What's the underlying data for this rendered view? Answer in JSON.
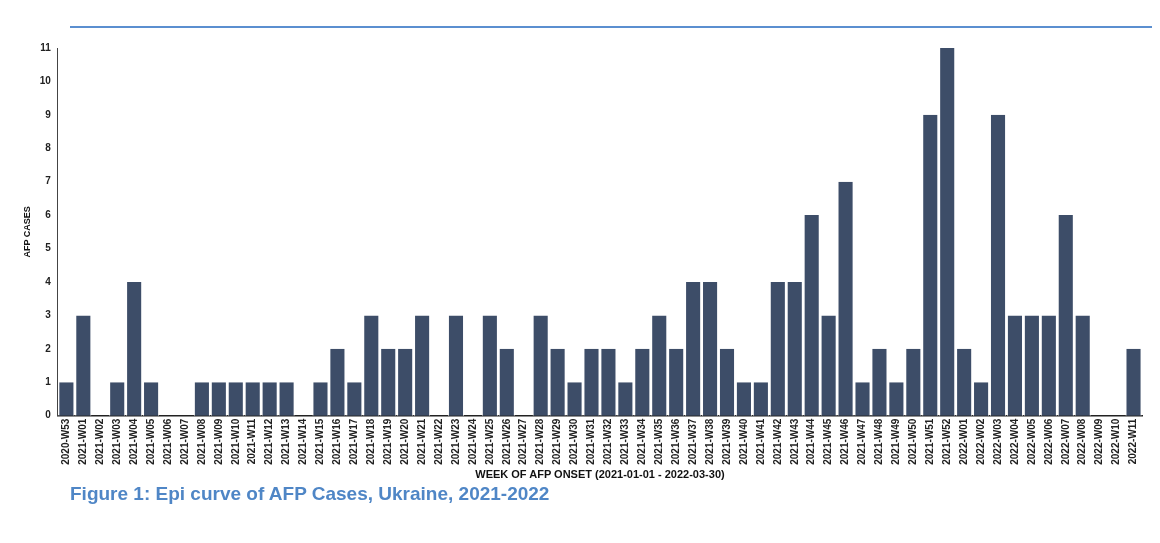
{
  "chart_data": {
    "type": "bar",
    "xlabel": "WEEK OF AFP ONSET (2021-01-01 - 2022-03-30)",
    "ylabel": "AFP CASES",
    "categories": [
      "2020-W53",
      "2021-W01",
      "2021-W02",
      "2021-W03",
      "2021-W04",
      "2021-W05",
      "2021-W06",
      "2021-W07",
      "2021-W08",
      "2021-W09",
      "2021-W10",
      "2021-W11",
      "2021-W12",
      "2021-W13",
      "2021-W14",
      "2021-W15",
      "2021-W16",
      "2021-W17",
      "2021-W18",
      "2021-W19",
      "2021-W20",
      "2021-W21",
      "2021-W22",
      "2021-W23",
      "2021-W24",
      "2021-W25",
      "2021-W26",
      "2021-W27",
      "2021-W28",
      "2021-W29",
      "2021-W30",
      "2021-W31",
      "2021-W32",
      "2021-W33",
      "2021-W34",
      "2021-W35",
      "2021-W36",
      "2021-W37",
      "2021-W38",
      "2021-W39",
      "2021-W40",
      "2021-W41",
      "2021-W42",
      "2021-W43",
      "2021-W44",
      "2021-W45",
      "2021-W46",
      "2021-W47",
      "2021-W48",
      "2021-W49",
      "2021-W50",
      "2021-W51",
      "2021-W52",
      "2022-W01",
      "2022-W02",
      "2022-W03",
      "2022-W04",
      "2022-W05",
      "2022-W06",
      "2022-W07",
      "2022-W08",
      "2022-W09",
      "2022-W10",
      "2022-W11"
    ],
    "values": [
      1,
      3,
      0,
      1,
      4,
      1,
      0,
      0,
      1,
      1,
      1,
      1,
      1,
      1,
      0,
      1,
      2,
      1,
      3,
      2,
      2,
      3,
      0,
      3,
      0,
      3,
      2,
      0,
      3,
      2,
      1,
      2,
      2,
      1,
      2,
      3,
      2,
      4,
      4,
      2,
      1,
      1,
      4,
      4,
      6,
      3,
      7,
      1,
      2,
      1,
      2,
      9,
      11,
      2,
      1,
      9,
      3,
      3,
      3,
      6,
      3,
      0,
      0,
      2
    ],
    "color": "#3d4d68",
    "ylim": [
      0,
      11
    ],
    "yticks": [
      0,
      1,
      2,
      3,
      4,
      5,
      6,
      7,
      8,
      9,
      10,
      11
    ],
    "grid": false,
    "annotations": [
      "Figure 1: Epi curve of AFP Cases, Ukraine, 2021-2022"
    ]
  }
}
